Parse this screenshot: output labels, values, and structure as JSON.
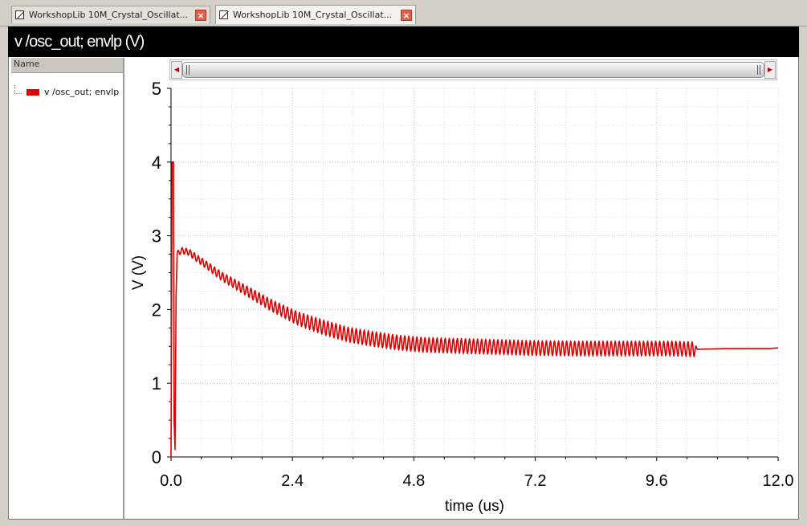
{
  "tabs": [
    {
      "label": "WorkshopLib 10M_Crystal_Oscillat...",
      "active": false
    },
    {
      "label": "WorkshopLib 10M_Crystal_Oscillat...",
      "active": true
    }
  ],
  "window_title": "v /osc_out; envlp (V)",
  "legend": {
    "header": "Name",
    "items": [
      {
        "label": "v /osc_out; envlp",
        "color": "#dd0000"
      }
    ]
  },
  "chart_data": {
    "type": "line",
    "xlabel": "time (us)",
    "ylabel": "V (V)",
    "xlim": [
      0,
      12.0
    ],
    "ylim": [
      0,
      5
    ],
    "xticks": [
      "0.0",
      "2.4",
      "4.8",
      "7.2",
      "9.6",
      "12.0"
    ],
    "xtick_values": [
      0,
      2.4,
      4.8,
      7.2,
      9.6,
      12.0
    ],
    "yticks": [
      "0",
      "1",
      "2",
      "3",
      "4",
      "5"
    ],
    "ytick_values": [
      0,
      1,
      2,
      3,
      4,
      5
    ],
    "grid": true,
    "series": [
      {
        "name": "v /osc_out; envlp",
        "color": "#dd0000",
        "x": [
          0.0,
          0.02,
          0.05,
          0.06,
          0.08,
          0.1,
          0.12,
          0.2,
          0.35,
          0.5,
          0.75,
          1.0,
          1.5,
          2.0,
          2.5,
          3.0,
          3.5,
          4.0,
          4.5,
          5.0,
          6.0,
          7.0,
          8.0,
          9.0,
          9.9,
          10.35,
          11.0,
          11.5,
          11.85,
          12.0
        ],
        "y": [
          0.0,
          4.0,
          4.0,
          0.5,
          0.1,
          2.2,
          2.75,
          2.8,
          2.78,
          2.7,
          2.58,
          2.45,
          2.25,
          2.05,
          1.88,
          1.76,
          1.66,
          1.6,
          1.55,
          1.52,
          1.5,
          1.48,
          1.47,
          1.47,
          1.47,
          1.46,
          1.47,
          1.47,
          1.47,
          1.48
        ]
      }
    ],
    "ripple_amplitude": [
      {
        "x": 0.12,
        "amp": 0.04
      },
      {
        "x": 3.0,
        "amp": 0.1
      },
      {
        "x": 10.35,
        "amp": 0.1
      },
      {
        "x": 10.4,
        "amp": 0.0
      }
    ]
  }
}
